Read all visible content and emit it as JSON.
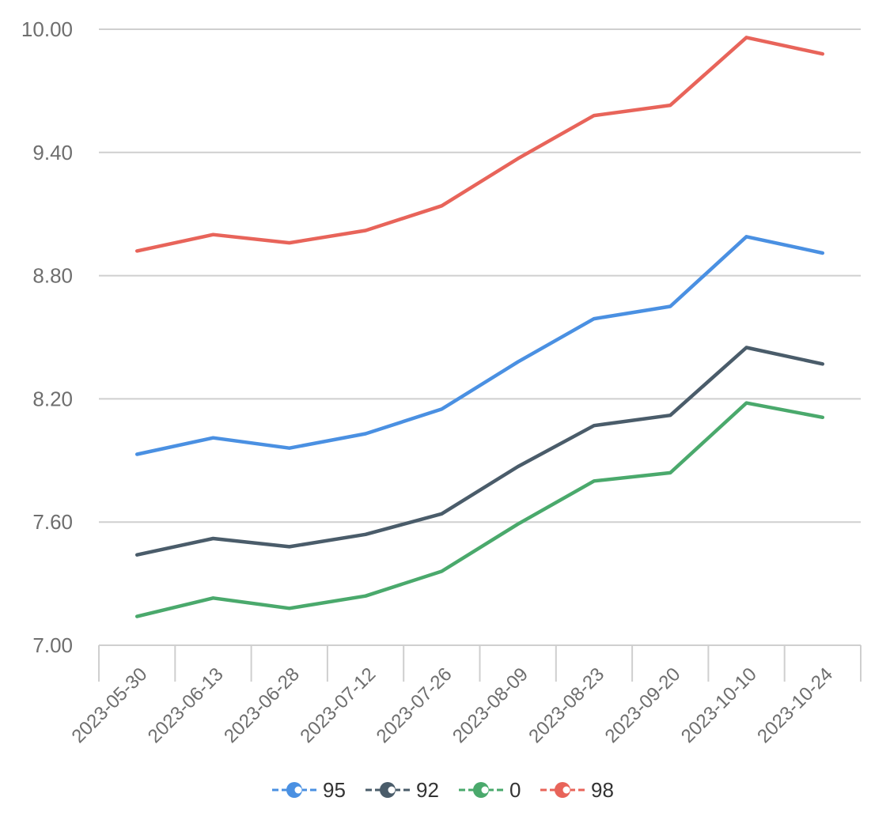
{
  "chart_data": {
    "type": "line",
    "categories": [
      "2023-05-30",
      "2023-06-13",
      "2023-06-28",
      "2023-07-12",
      "2023-07-26",
      "2023-08-09",
      "2023-08-23",
      "2023-09-20",
      "2023-10-10",
      "2023-10-24"
    ],
    "series": [
      {
        "name": "95",
        "color": "#4a90e2",
        "values": [
          7.93,
          8.01,
          7.96,
          8.03,
          8.15,
          8.38,
          8.59,
          8.65,
          8.99,
          8.91
        ]
      },
      {
        "name": "92",
        "color": "#4a5c6a",
        "values": [
          7.44,
          7.52,
          7.48,
          7.54,
          7.64,
          7.87,
          8.07,
          8.12,
          8.45,
          8.37
        ]
      },
      {
        "name": "0",
        "color": "#4aa96c",
        "values": [
          7.14,
          7.23,
          7.18,
          7.24,
          7.36,
          7.59,
          7.8,
          7.84,
          8.18,
          8.11
        ]
      },
      {
        "name": "98",
        "color": "#e8645a",
        "values": [
          8.92,
          9.0,
          8.96,
          9.02,
          9.14,
          9.37,
          9.58,
          9.63,
          9.96,
          9.88
        ]
      }
    ],
    "yticks": [
      "10.00",
      "9.40",
      "8.80",
      "8.20",
      "7.60",
      "7.00"
    ],
    "ylim": [
      7.0,
      10.0
    ],
    "title": "",
    "xlabel": "",
    "ylabel": "",
    "grid": true,
    "legend_position": "bottom"
  }
}
